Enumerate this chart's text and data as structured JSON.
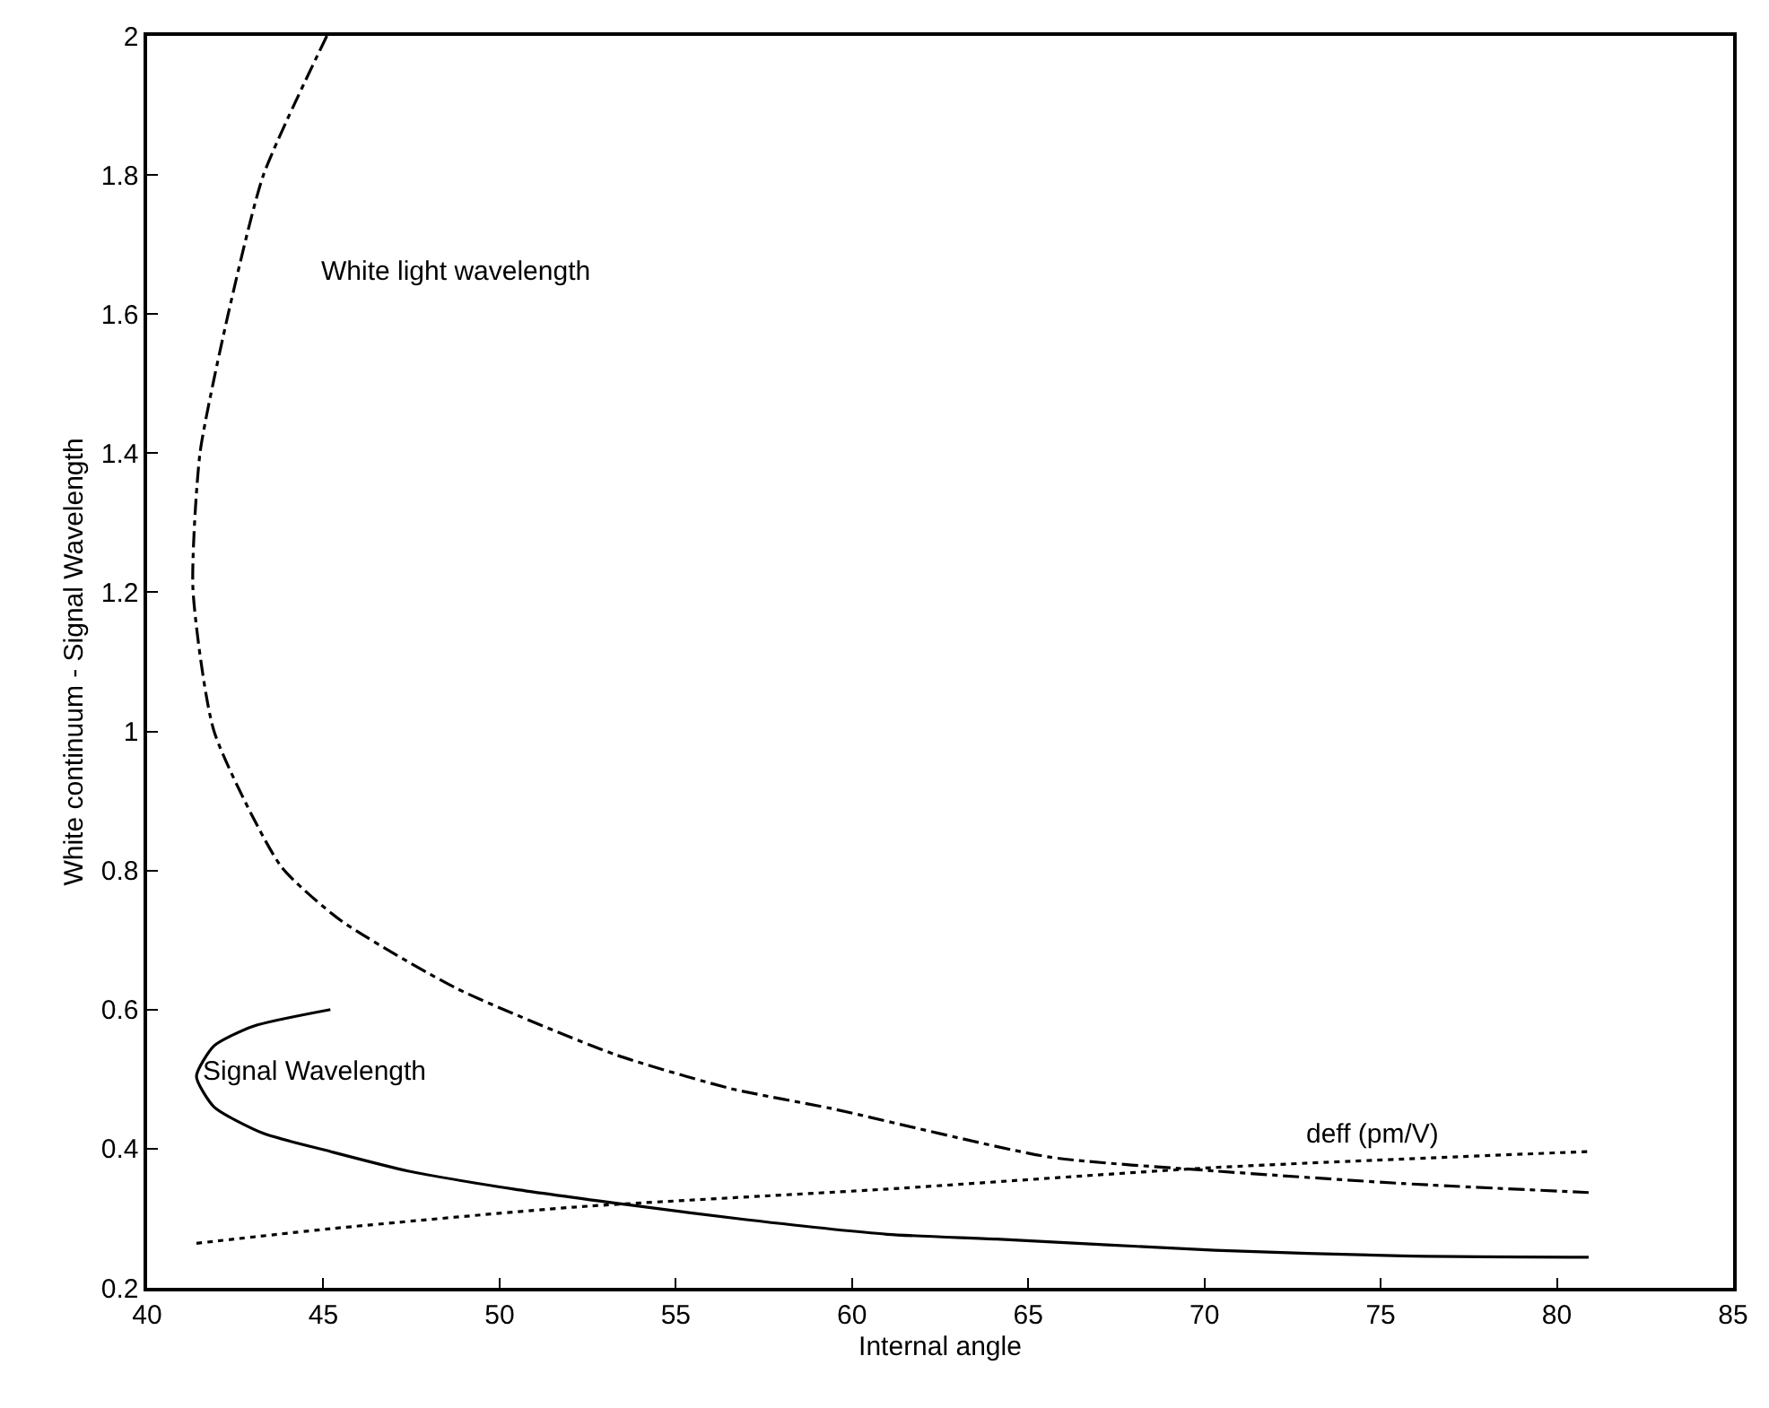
{
  "chart_data": {
    "type": "line",
    "xlabel": "Internal angle",
    "ylabel": "White continuum - Signal Wavelength",
    "xlim": [
      40,
      85
    ],
    "xticks": [
      40,
      45,
      50,
      55,
      60,
      65,
      70,
      75,
      80,
      85
    ],
    "ylim": [
      0.2,
      2
    ],
    "yticks": [
      0.2,
      0.4,
      0.6,
      0.8,
      1,
      1.2,
      1.4,
      1.6,
      1.8,
      2
    ],
    "marker": "none",
    "series": [
      {
        "color": "#000000",
        "line_style": "dashdot",
        "x": [
          45.1,
          43.3,
          42.3,
          41.5,
          41.3,
          41.9,
          43.8,
          45.5,
          48.8,
          53.3,
          56.6,
          59.4,
          65.6,
          70.3,
          75.6,
          80.9
        ],
        "values": [
          2.0,
          1.8,
          1.6,
          1.4,
          1.205,
          1.0,
          0.806,
          0.728,
          0.63,
          0.535,
          0.486,
          0.458,
          0.388,
          0.368,
          0.35,
          0.337
        ]
      },
      {
        "color": "#000000",
        "line_style": "solid",
        "x": [
          45.2,
          43.0,
          41.9,
          41.4,
          41.9,
          43.3,
          45.2,
          47.4,
          50.4,
          53.7,
          57.0,
          61.0,
          64.1,
          70.3,
          75.6,
          80.9
        ],
        "values": [
          0.6,
          0.576,
          0.548,
          0.504,
          0.46,
          0.422,
          0.396,
          0.368,
          0.342,
          0.319,
          0.298,
          0.277,
          0.27,
          0.254,
          0.246,
          0.244
        ]
      },
      {
        "color": "#000000",
        "line_style": "dotted",
        "x": [
          41.4,
          45.2,
          52.1,
          61.0,
          70.3,
          80.9
        ],
        "values": [
          0.264,
          0.285,
          0.316,
          0.342,
          0.373,
          0.396
        ]
      }
    ],
    "annotations": [
      "White light wavelength",
      {
        "text": "Signal Wavelength",
        "x": 41.5,
        "y": 0.512
      },
      "deff (pm/V)"
    ]
  }
}
